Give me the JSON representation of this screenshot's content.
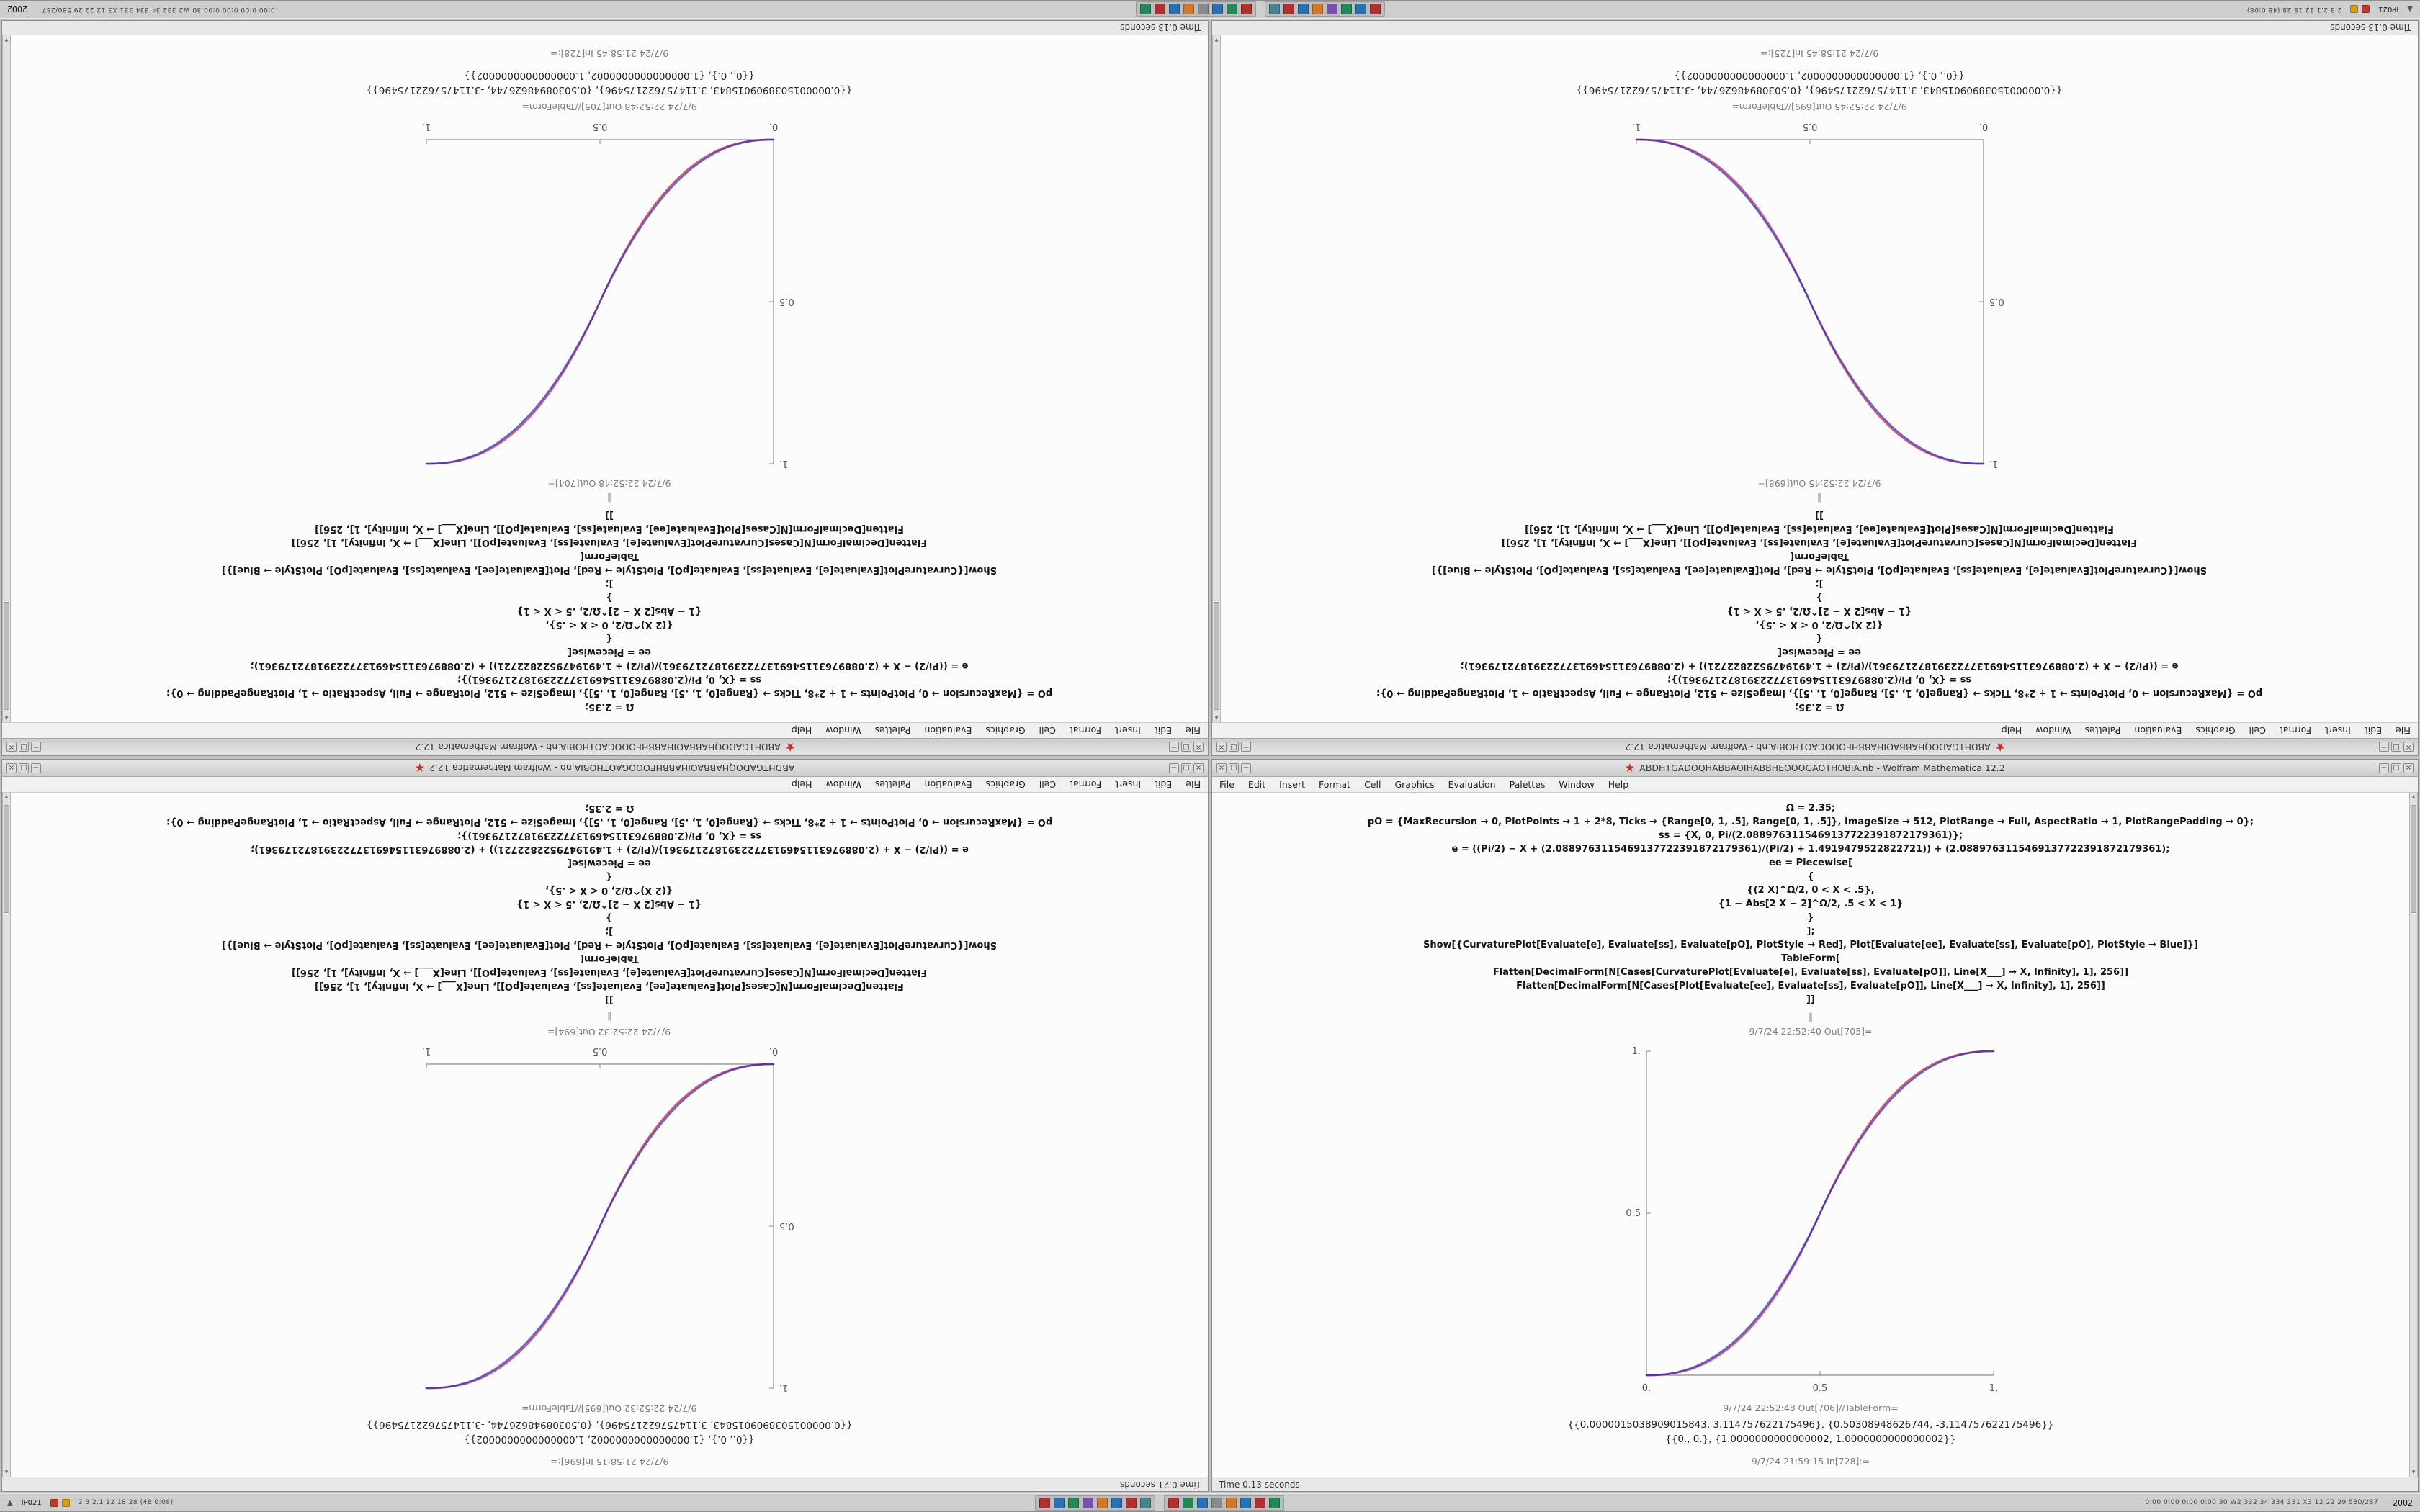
{
  "desktop": {
    "background": "#c2c2c2"
  },
  "taskbar": {
    "left_arrow": "▲",
    "left_label": "IP021",
    "left_icons": [
      "#c0392b",
      "#d4a017"
    ],
    "left_stats": "2.3 2.1 12 18 28 (48.0:08)",
    "icon_groups": [
      [
        "#b03030",
        "#2a6fb0",
        "#22875a",
        "#7a4fb0",
        "#d07a28",
        "#2a6fb0",
        "#b03030",
        "#4a8090"
      ],
      [
        "#b03030",
        "#22875a",
        "#2a6fb0",
        "#8a8a8a",
        "#d07a28",
        "#2a6fb0",
        "#b03030",
        "#22875a"
      ]
    ],
    "right_stats": "0:00 0:00 0:00 0:00 30 W2 332 34 334 331 X3 12 22 29 580/287",
    "clock": "2002"
  },
  "plot_common": {
    "x_tick_labels": [
      "0.",
      "0.5",
      "1."
    ],
    "y_tick_labels": [
      "0.5",
      "1."
    ],
    "x_range": [
      0,
      1
    ],
    "y_range": [
      0,
      1
    ],
    "exponent": 2.35,
    "curve_colors": [
      "#c21b3a",
      "#2b2bc2"
    ],
    "axis_color": "#8a8a8a",
    "tick_label_color": "#555555"
  },
  "window_common": {
    "title": "ABDHTGADOQHABBAOIHABBHEOOOGAOTHOBIA.nb - Wolfram Mathematica 12.2",
    "menu": [
      "File",
      "Edit",
      "Insert",
      "Format",
      "Cell",
      "Graphics",
      "Evaluation",
      "Palettes",
      "Window",
      "Help"
    ],
    "buttons_left": [
      "×",
      "▢",
      "−"
    ],
    "buttons_right": [
      "−",
      "▢",
      "×"
    ],
    "separator": "‖",
    "code_lines": [
      "Ω = 2.35;",
      "pO = {MaxRecursion → 0, PlotPoints → 1 + 2*8, Ticks → {Range[0, 1, .5], Range[0, 1, .5]}, ImageSize → 512, PlotRange → Full, AspectRatio → 1, PlotRangePadding → 0};",
      "ss = {X, 0, Pi/(2.0889763115469137722391872179361)};",
      "e = ((Pi/2) − X + (2.0889763115469137722391872179361)/(Pi/2) + 1.4919479522822721)) + (2.0889763115469137722391872179361);",
      "ee = Piecewise[",
      "{",
      "{(2 X)^Ω/2, 0 < X < .5},",
      "{1 − Abs[2 X − 2]^Ω/2, .5 < X < 1}",
      "}",
      "];",
      "Show[{CurvaturePlot[Evaluate[e], Evaluate[ss], Evaluate[pO], PlotStyle → Red], Plot[Evaluate[ee], Evaluate[ss], Evaluate[pO], PlotStyle → Blue]}]",
      "TableForm[",
      "Flatten[DecimalForm[N[Cases[CurvaturePlot[Evaluate[e], Evaluate[ss], Evaluate[pO]], Line[X___] → X, Infinity], 1], 256]]",
      "Flatten[DecimalForm[N[Cases[Plot[Evaluate[ee], Evaluate[ss], Evaluate[pO]], Line[X___] → X, Infinity], 1], 256]]",
      "]]"
    ],
    "numbers": [
      "{{0.0000015038909015843, 3.114757622175496}, {0.50308948626744, -3.114757622175496}}",
      "{{0., 0.}, {1.0000000000000002, 1.0000000000000002}}"
    ]
  },
  "windows": [
    {
      "name": "top-left",
      "rotation": "full",
      "scrollbar": "right",
      "status": "Time 0.13 seconds",
      "out_label_plot": "9/7/24 22:52:48 Out[704]=",
      "out_label_table": "9/7/24 22:52:48 Out[705]//TableForm=",
      "in_label_trailing": "9/7/24 21:58:45 In[728]:=",
      "plot": {
        "type": "line",
        "direction": "increasing"
      }
    },
    {
      "name": "top-right",
      "rotation": "full",
      "scrollbar": "right",
      "status": "Time 0.13 seconds",
      "out_label_plot": "9/7/24 22:52:45 Out[698]=",
      "out_label_table": "9/7/24 22:52:45 Out[699]//TableForm=",
      "in_label_trailing": "9/7/24 21:58:45 In[725]:=",
      "plot": {
        "type": "line",
        "direction": "decreasing"
      }
    },
    {
      "name": "bottom-left",
      "rotation": "lines",
      "scrollbar": "left",
      "status": "Time 0.21 seconds",
      "out_label_plot": "9/7/24 22:52:32 Out[694]=",
      "out_label_table": "9/7/24 22:52:32 Out[695]//TableForm=",
      "in_label_trailing": "9/7/24 21:58:15 In[696]:=",
      "plot": {
        "type": "line",
        "direction": "increasing"
      }
    },
    {
      "name": "bottom-right",
      "rotation": "none",
      "scrollbar": "right",
      "status": "Time 0.13 seconds",
      "out_label_plot": "9/7/24 22:52:40 Out[705]=",
      "out_label_table": "9/7/24 22:52:48 Out[706]//TableForm=",
      "in_label_trailing": "9/7/24 21:59:15 In[728]:=",
      "plot": {
        "type": "line",
        "direction": "increasing"
      }
    }
  ]
}
